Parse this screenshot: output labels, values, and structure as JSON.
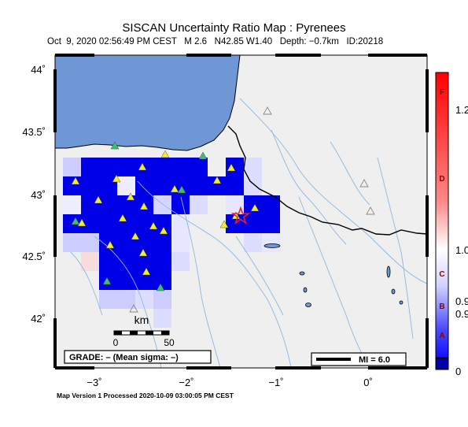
{
  "title": "SISCAN Uncertainty Ratio Map : Pyrenees",
  "subtitle": "Oct  9, 2020 02:56:49 PM CEST   M 2.6   N42.85 W1.40   Depth: −0.7km   ID:20218",
  "footer": "Map Version 1 Processed 2020-10-09 03:00:05 PM CEST",
  "axes": {
    "lat_labels": [
      "44˚",
      "43.5˚",
      "43˚",
      "42.5˚",
      "42˚"
    ],
    "lon_labels": [
      "−3˚",
      "−2˚",
      "−1˚",
      "0˚"
    ]
  },
  "scalebar": {
    "unit": "km",
    "start": "0",
    "end": "50"
  },
  "grade_box": "GRADE: – (Mean sigma: –)",
  "mi_legend": "MI = 6.0",
  "colorbar": {
    "letters": [
      "F",
      "D",
      "C",
      "B",
      "A"
    ],
    "values": [
      "1.2",
      "1.0",
      "0.9",
      "0.9",
      "0"
    ]
  },
  "colors": {
    "ocean": "#6f97d5",
    "land": "#efefef",
    "cell_strong": "#0000e8",
    "epicenter": "#e8202a",
    "station": "#f0ec30",
    "station_alt": "#3ac070"
  },
  "icons": {
    "epicenter": "star-icon",
    "station": "triangle-icon"
  }
}
